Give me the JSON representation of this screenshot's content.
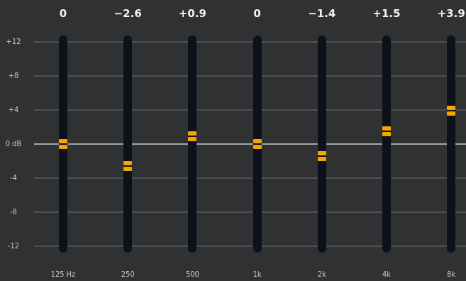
{
  "equalizer": {
    "y_labels": [
      "+12",
      "+8",
      "+4",
      "0 dB",
      "-4",
      "-8",
      "-12"
    ],
    "gain_range_db": [
      -12,
      12
    ],
    "bands": [
      {
        "frequency": "125 Hz",
        "gain_label": "0",
        "gain_db": 0
      },
      {
        "frequency": "250",
        "gain_label": "−2.6",
        "gain_db": -2.6
      },
      {
        "frequency": "500",
        "gain_label": "+0.9",
        "gain_db": 0.9
      },
      {
        "frequency": "1k",
        "gain_label": "0",
        "gain_db": 0
      },
      {
        "frequency": "2k",
        "gain_label": "−1.4",
        "gain_db": -1.4
      },
      {
        "frequency": "4k",
        "gain_label": "+1.5",
        "gain_db": 1.5
      },
      {
        "frequency": "8k",
        "gain_label": "+3.9",
        "gain_db": 3.9
      }
    ]
  },
  "colors": {
    "background": "#303132",
    "track": "#0d1119",
    "thumb": "#f5a400",
    "gridline": "#4e5052",
    "zero_line": "#a2a4a6"
  }
}
